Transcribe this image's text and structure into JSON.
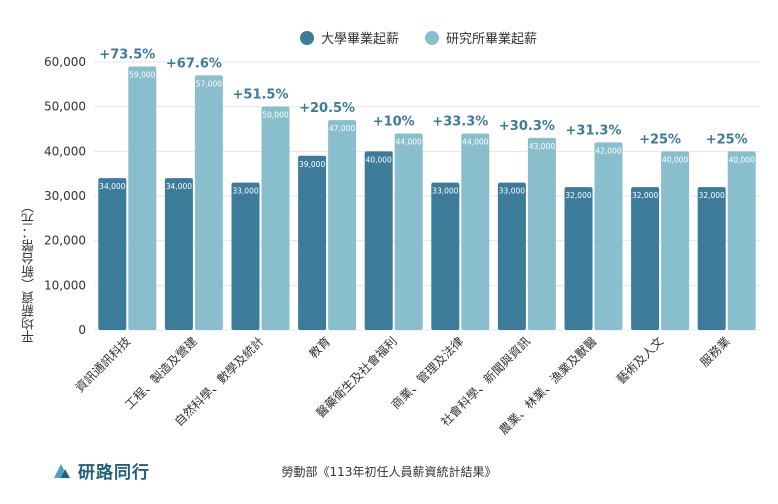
{
  "legend": {
    "bachelor": "大學畢業起薪",
    "graduate": "研究所畢業起薪"
  },
  "source": "勞動部《113年初任人員薪資統計結果》",
  "logo": {
    "text": "研路同行",
    "icon": "mountain-logo-icon"
  },
  "colors": {
    "bachelor": "#3d7b9b",
    "graduate": "#89bfcc",
    "increase": "#3d7b9b",
    "grid": "#e6e6e6"
  },
  "chart_data": {
    "type": "bar",
    "ylabel": "平均薪資（新台幣：元）",
    "ylim": [
      0,
      60000
    ],
    "yticks": [
      "0",
      "10,000",
      "20,000",
      "30,000",
      "40,000",
      "50,000",
      "60,000"
    ],
    "ytick_values": [
      0,
      10000,
      20000,
      30000,
      40000,
      50000,
      60000
    ],
    "grid": true,
    "legend_position": "top-center",
    "categories": [
      "資訊通訊科技",
      "工程、製造及營建",
      "自然科學、數學及統計",
      "教育",
      "醫藥衛生及社會福利",
      "商業、管理及法律",
      "社會科學、新聞與資訊",
      "農業、林業、漁業及獸醫",
      "藝術及人文",
      "服務業"
    ],
    "series": [
      {
        "name": "大學畢業起薪",
        "values": [
          34000,
          34000,
          33000,
          39000,
          40000,
          33000,
          33000,
          32000,
          32000,
          32000
        ],
        "labels": [
          "34,000",
          "34,000",
          "33,000",
          "39,000",
          "40,000",
          "33,000",
          "33,000",
          "32,000",
          "32,000",
          "32,000"
        ]
      },
      {
        "name": "研究所畢業起薪",
        "values": [
          59000,
          57000,
          50000,
          47000,
          44000,
          44000,
          43000,
          42000,
          40000,
          40000
        ],
        "labels": [
          "59,000",
          "57,000",
          "50,000",
          "47,000",
          "44,000",
          "44,000",
          "43,000",
          "42,000",
          "40,000",
          "40,000"
        ]
      }
    ],
    "increase_labels": [
      "+73.5%",
      "+67.6%",
      "+51.5%",
      "+20.5%",
      "+10%",
      "+33.3%",
      "+30.3%",
      "+31.3%",
      "+25%",
      "+25%"
    ]
  }
}
